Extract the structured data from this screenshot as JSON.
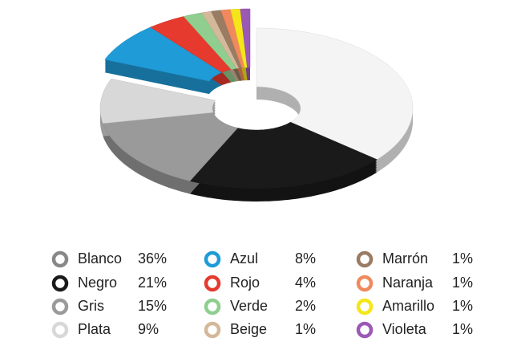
{
  "chart_data": {
    "type": "pie",
    "categories": [
      "Blanco",
      "Negro",
      "Gris",
      "Plata",
      "Azul",
      "Rojo",
      "Verde",
      "Beige",
      "Marrón",
      "Naranja",
      "Amarillo",
      "Violeta"
    ],
    "values": [
      36,
      21,
      15,
      9,
      8,
      4,
      2,
      1,
      1,
      1,
      1,
      1
    ],
    "value_labels": [
      "36%",
      "21%",
      "15%",
      "9%",
      "8%",
      "4%",
      "2%",
      "1%",
      "1%",
      "1%",
      "1%",
      "1%"
    ],
    "colors": [
      "#f4f4f4",
      "#1a1a1a",
      "#9a9a9a",
      "#d8d8d8",
      "#1f9bd7",
      "#e63a2e",
      "#8fce8f",
      "#d4b89a",
      "#9a7b64",
      "#f08a5d",
      "#f5e61a",
      "#9b59b6"
    ]
  }
}
